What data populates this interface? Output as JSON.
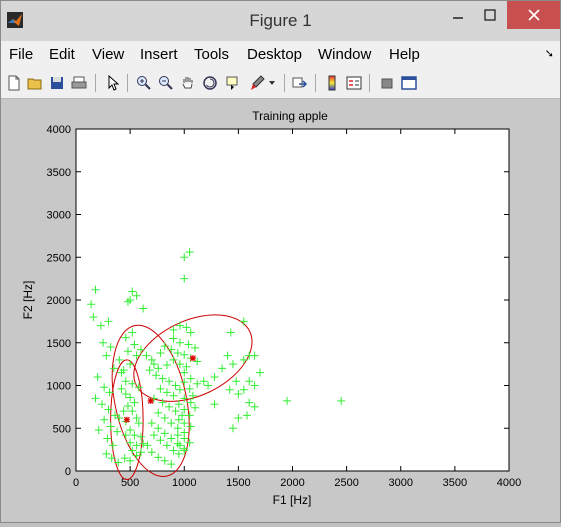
{
  "window": {
    "title": "Figure 1"
  },
  "menu": [
    "File",
    "Edit",
    "View",
    "Insert",
    "Tools",
    "Desktop",
    "Window",
    "Help"
  ],
  "toolbar_icons": [
    "new-figure-icon",
    "open-file-icon",
    "save-icon",
    "print-icon",
    "pointer-icon",
    "zoom-in-icon",
    "zoom-out-icon",
    "pan-hand-icon",
    "rotate-3d-icon",
    "data-cursor-icon",
    "brush-icon",
    "link-plot-icon",
    "colorbar-icon",
    "legend-icon",
    "hide-plot-tools-icon",
    "show-plot-tools-icon"
  ],
  "chart_data": {
    "type": "scatter",
    "title": "Training apple",
    "xlabel": "F1 [Hz]",
    "ylabel": "F2 [Hz]",
    "xlim": [
      0,
      4000
    ],
    "ylim": [
      0,
      4000
    ],
    "xticks": [
      0,
      500,
      1000,
      1500,
      2000,
      2500,
      3000,
      3500,
      4000
    ],
    "yticks": [
      0,
      500,
      1000,
      1500,
      2000,
      2500,
      3000,
      3500,
      4000
    ],
    "grid": false,
    "colors": {
      "points": "#33ee33",
      "centers": "#dd0000",
      "ellipses": "#cc0000"
    },
    "points": [
      [
        140,
        1950
      ],
      [
        180,
        2120
      ],
      [
        160,
        1800
      ],
      [
        230,
        1700
      ],
      [
        300,
        1750
      ],
      [
        250,
        1500
      ],
      [
        320,
        1450
      ],
      [
        280,
        1350
      ],
      [
        350,
        1200
      ],
      [
        400,
        1300
      ],
      [
        420,
        1150
      ],
      [
        200,
        1100
      ],
      [
        260,
        980
      ],
      [
        310,
        920
      ],
      [
        180,
        850
      ],
      [
        240,
        780
      ],
      [
        300,
        720
      ],
      [
        360,
        650
      ],
      [
        260,
        600
      ],
      [
        320,
        520
      ],
      [
        210,
        480
      ],
      [
        380,
        460
      ],
      [
        290,
        380
      ],
      [
        340,
        300
      ],
      [
        280,
        200
      ],
      [
        330,
        150
      ],
      [
        390,
        100
      ],
      [
        450,
        150
      ],
      [
        500,
        120
      ],
      [
        560,
        180
      ],
      [
        420,
        960
      ],
      [
        460,
        900
      ],
      [
        500,
        860
      ],
      [
        540,
        800
      ],
      [
        480,
        760
      ],
      [
        440,
        700
      ],
      [
        520,
        700
      ],
      [
        400,
        620
      ],
      [
        460,
        580
      ],
      [
        560,
        620
      ],
      [
        580,
        560
      ],
      [
        500,
        480
      ],
      [
        460,
        420
      ],
      [
        540,
        420
      ],
      [
        600,
        400
      ],
      [
        500,
        330
      ],
      [
        560,
        300
      ],
      [
        620,
        320
      ],
      [
        520,
        240
      ],
      [
        600,
        220
      ],
      [
        460,
        1050
      ],
      [
        520,
        1020
      ],
      [
        580,
        980
      ],
      [
        440,
        1180
      ],
      [
        500,
        1250
      ],
      [
        560,
        1350
      ],
      [
        480,
        1400
      ],
      [
        540,
        1480
      ],
      [
        460,
        1560
      ],
      [
        520,
        1620
      ],
      [
        500,
        2000
      ],
      [
        520,
        2100
      ],
      [
        560,
        2050
      ],
      [
        480,
        1980
      ],
      [
        620,
        1900
      ],
      [
        600,
        1420
      ],
      [
        650,
        1350
      ],
      [
        700,
        1300
      ],
      [
        720,
        1250
      ],
      [
        760,
        1200
      ],
      [
        680,
        1180
      ],
      [
        740,
        1120
      ],
      [
        800,
        1080
      ],
      [
        860,
        1050
      ],
      [
        920,
        1000
      ],
      [
        960,
        950
      ],
      [
        780,
        960
      ],
      [
        840,
        920
      ],
      [
        900,
        880
      ],
      [
        720,
        850
      ],
      [
        800,
        800
      ],
      [
        860,
        750
      ],
      [
        920,
        700
      ],
      [
        980,
        650
      ],
      [
        760,
        680
      ],
      [
        820,
        620
      ],
      [
        880,
        560
      ],
      [
        940,
        500
      ],
      [
        1000,
        450
      ],
      [
        700,
        560
      ],
      [
        760,
        500
      ],
      [
        820,
        440
      ],
      [
        880,
        380
      ],
      [
        940,
        320
      ],
      [
        1000,
        260
      ],
      [
        720,
        420
      ],
      [
        780,
        360
      ],
      [
        840,
        300
      ],
      [
        900,
        240
      ],
      [
        660,
        300
      ],
      [
        700,
        220
      ],
      [
        760,
        160
      ],
      [
        820,
        120
      ],
      [
        880,
        80
      ],
      [
        900,
        1650
      ],
      [
        960,
        1700
      ],
      [
        1020,
        1680
      ],
      [
        1060,
        1620
      ],
      [
        900,
        1550
      ],
      [
        960,
        1500
      ],
      [
        1040,
        1480
      ],
      [
        1100,
        1440
      ],
      [
        880,
        1420
      ],
      [
        940,
        1380
      ],
      [
        1000,
        1360
      ],
      [
        1060,
        1320
      ],
      [
        1120,
        1280
      ],
      [
        900,
        1300
      ],
      [
        960,
        1250
      ],
      [
        1020,
        1220
      ],
      [
        840,
        1240
      ],
      [
        780,
        1380
      ],
      [
        820,
        1460
      ],
      [
        1000,
        1150
      ],
      [
        1060,
        1080
      ],
      [
        1120,
        1020
      ],
      [
        1000,
        1040
      ],
      [
        1050,
        960
      ],
      [
        1080,
        880
      ],
      [
        1000,
        850
      ],
      [
        1060,
        800
      ],
      [
        1100,
        740
      ],
      [
        950,
        780
      ],
      [
        1000,
        720
      ],
      [
        1050,
        650
      ],
      [
        950,
        600
      ],
      [
        1000,
        560
      ],
      [
        1060,
        520
      ],
      [
        940,
        420
      ],
      [
        1000,
        380
      ],
      [
        1050,
        330
      ],
      [
        960,
        300
      ],
      [
        1000,
        240
      ],
      [
        950,
        200
      ],
      [
        1000,
        2250
      ],
      [
        1000,
        2500
      ],
      [
        1050,
        2560
      ],
      [
        1180,
        1050
      ],
      [
        1220,
        1000
      ],
      [
        1280,
        1100
      ],
      [
        1350,
        1200
      ],
      [
        1400,
        1350
      ],
      [
        1450,
        1250
      ],
      [
        1480,
        1050
      ],
      [
        1420,
        950
      ],
      [
        1500,
        900
      ],
      [
        1550,
        1300
      ],
      [
        1600,
        1350
      ],
      [
        1650,
        1350
      ],
      [
        1700,
        1150
      ],
      [
        1600,
        1050
      ],
      [
        1650,
        1000
      ],
      [
        1550,
        950
      ],
      [
        1600,
        800
      ],
      [
        1650,
        750
      ],
      [
        1580,
        650
      ],
      [
        1500,
        620
      ],
      [
        1450,
        500
      ],
      [
        1430,
        1620
      ],
      [
        1550,
        1750
      ],
      [
        1280,
        780
      ],
      [
        1950,
        820
      ],
      [
        2450,
        820
      ]
    ],
    "centers": [
      [
        470,
        600
      ],
      [
        690,
        820
      ],
      [
        1080,
        1320
      ]
    ],
    "ellipses": [
      {
        "cx": 470,
        "cy": 600,
        "rx_data": 150,
        "ry_data": 700
      },
      {
        "cx": 690,
        "cy": 820,
        "rx_data": 330,
        "ry_data": 900,
        "rot": -12
      },
      {
        "cx": 1080,
        "cy": 1320,
        "rx_data": 580,
        "ry_data": 440,
        "rot": -25
      }
    ]
  }
}
